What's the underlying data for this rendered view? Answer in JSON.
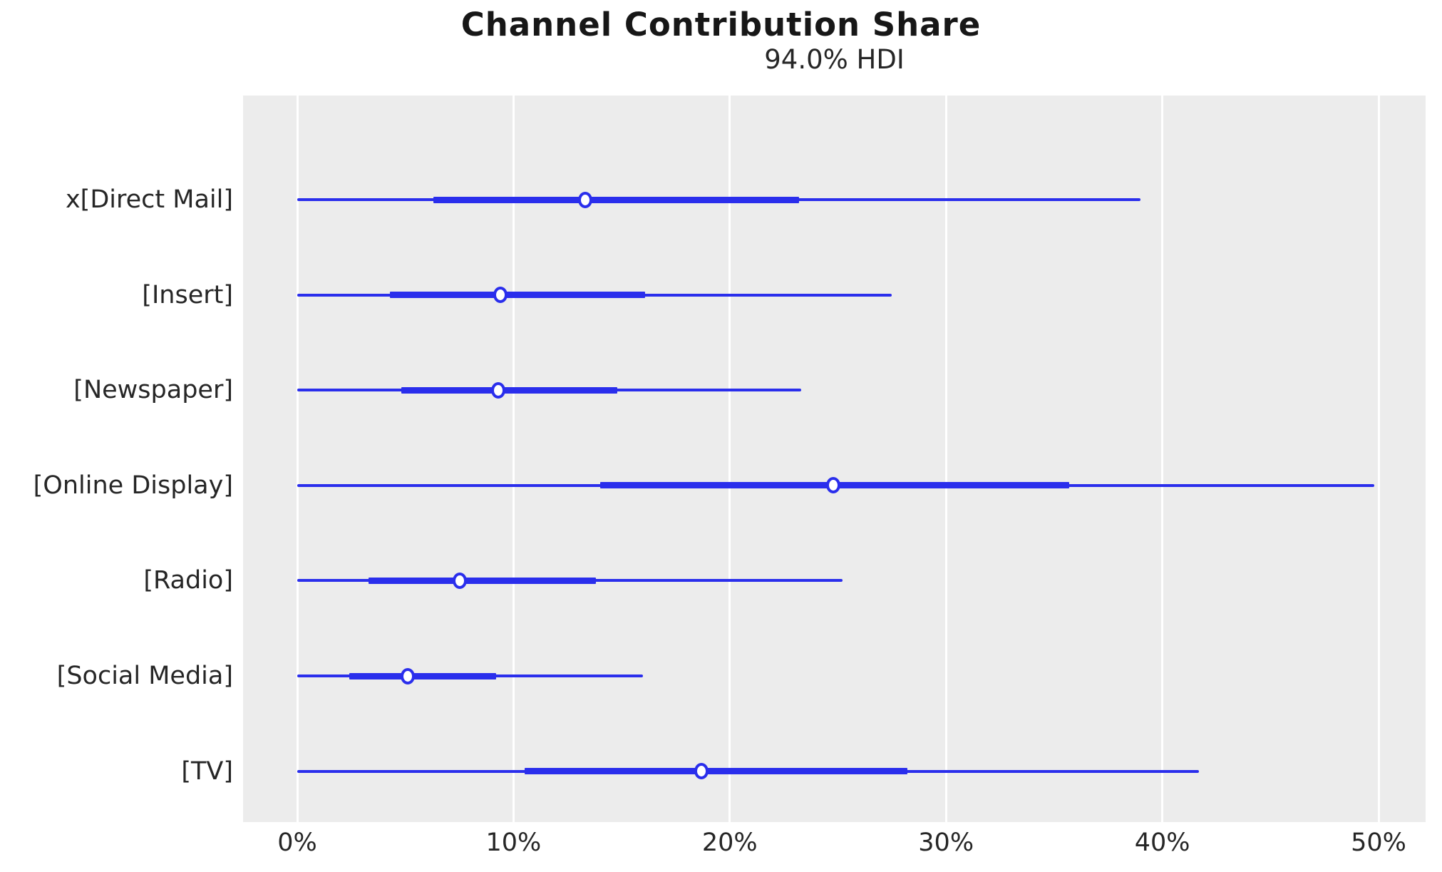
{
  "figure": {
    "title": "Channel Contribution Share",
    "subtitle": "94.0% HDI"
  },
  "colors": {
    "line": "#2a2eec",
    "plot_background": "#ececec",
    "grid": "#ffffff",
    "tick_text": "#262626",
    "title_text": "#171717",
    "point_fill": "#ffffff"
  },
  "chart_data": {
    "type": "forest",
    "orientation": "horizontal",
    "title": "Channel Contribution Share",
    "subtitle": "94.0% HDI",
    "hdi_probability": 0.94,
    "xlabel": "",
    "ylabel": "",
    "xlim_percent": [
      0,
      50
    ],
    "grid": true,
    "x_ticks": [
      {
        "value": 0,
        "label": "0%"
      },
      {
        "value": 10,
        "label": "10%"
      },
      {
        "value": 20,
        "label": "20%"
      },
      {
        "value": 30,
        "label": "30%"
      },
      {
        "value": 40,
        "label": "40%"
      },
      {
        "value": 50,
        "label": "50%"
      }
    ],
    "rows": [
      {
        "label": "x[Direct Mail]",
        "hdi_low": 0,
        "hdi_high": 39.0,
        "thick_low": 6.3,
        "thick_high": 23.2,
        "median": 13.3
      },
      {
        "label": "[Insert]",
        "hdi_low": 0,
        "hdi_high": 27.5,
        "thick_low": 4.3,
        "thick_high": 16.1,
        "median": 9.4
      },
      {
        "label": "[Newspaper]",
        "hdi_low": 0,
        "hdi_high": 23.3,
        "thick_low": 4.8,
        "thick_high": 14.8,
        "median": 9.3
      },
      {
        "label": "[Online Display]",
        "hdi_low": 0,
        "hdi_high": 49.8,
        "thick_low": 14.0,
        "thick_high": 35.7,
        "median": 24.8
      },
      {
        "label": "[Radio]",
        "hdi_low": 0,
        "hdi_high": 25.2,
        "thick_low": 3.3,
        "thick_high": 13.8,
        "median": 7.5
      },
      {
        "label": "[Social Media]",
        "hdi_low": 0,
        "hdi_high": 16.0,
        "thick_low": 2.4,
        "thick_high": 9.2,
        "median": 5.1
      },
      {
        "label": "[TV]",
        "hdi_low": 0,
        "hdi_high": 41.7,
        "thick_low": 10.5,
        "thick_high": 28.2,
        "median": 18.7
      }
    ]
  }
}
